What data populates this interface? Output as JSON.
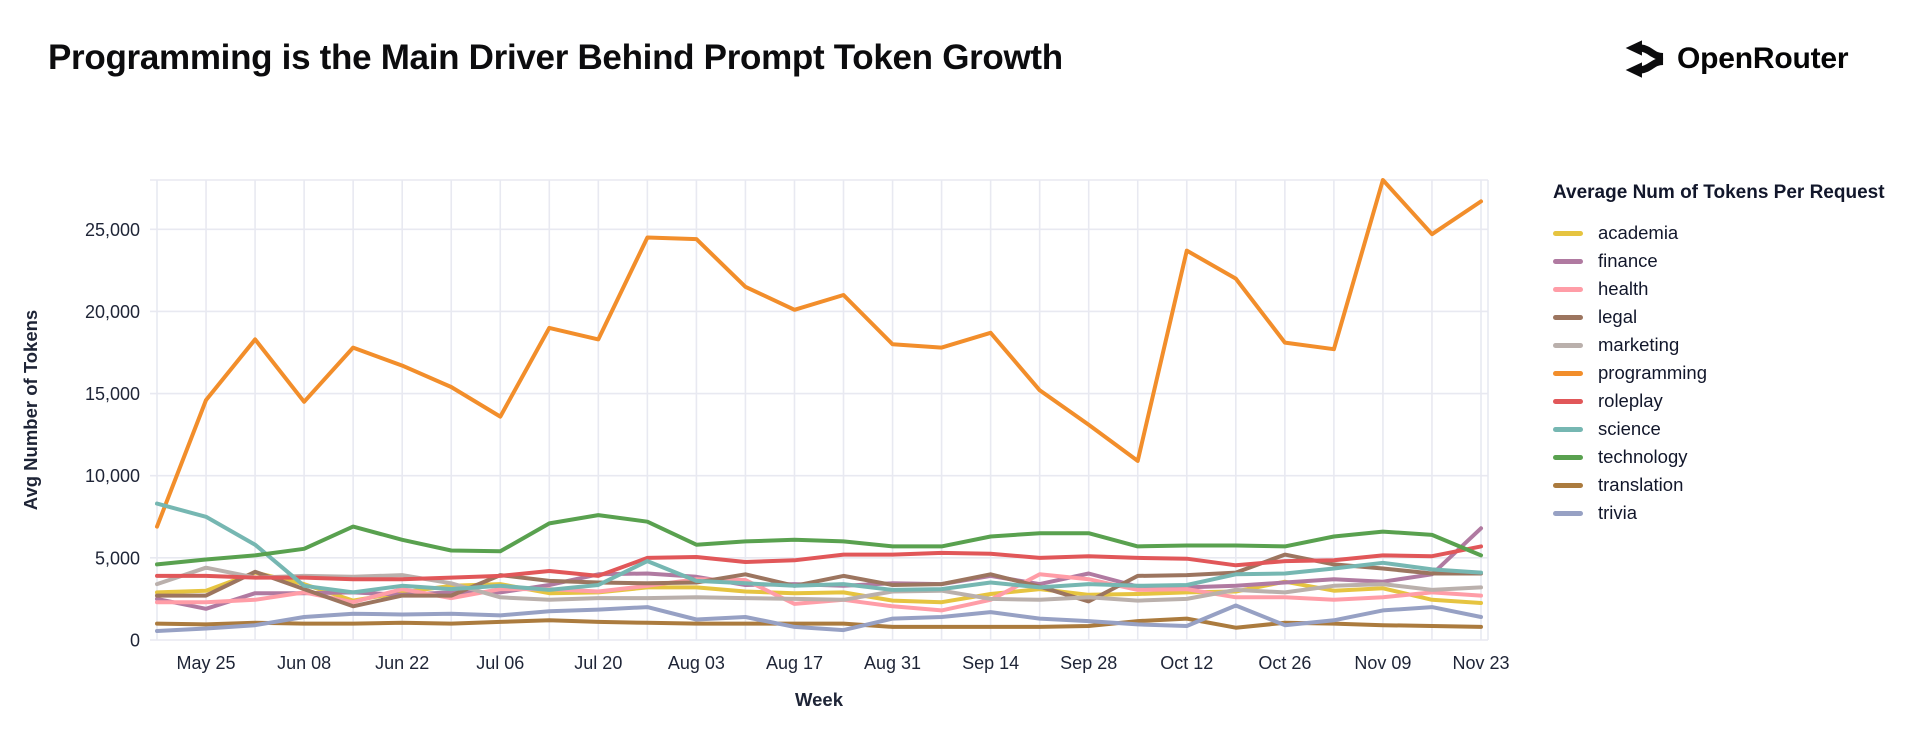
{
  "header": {
    "title": "Programming is the Main Driver Behind Prompt Token Growth",
    "brand": "OpenRouter"
  },
  "chart_data": {
    "type": "line",
    "title": "",
    "xlabel": "Week",
    "ylabel": "Avg Number of Tokens",
    "legend_title": "Average Num of Tokens Per Request",
    "legend_position": "right",
    "grid": true,
    "ylim": [
      0,
      28000
    ],
    "yticks": [
      0,
      5000,
      10000,
      15000,
      20000,
      25000
    ],
    "categories": [
      "May 18",
      "May 25",
      "Jun 01",
      "Jun 08",
      "Jun 15",
      "Jun 22",
      "Jun 29",
      "Jul 06",
      "Jul 13",
      "Jul 20",
      "Jul 27",
      "Aug 03",
      "Aug 10",
      "Aug 17",
      "Aug 24",
      "Aug 31",
      "Sep 07",
      "Sep 14",
      "Sep 21",
      "Sep 28",
      "Oct 05",
      "Oct 12",
      "Oct 19",
      "Oct 26",
      "Nov 02",
      "Nov 09",
      "Nov 16",
      "Nov 23"
    ],
    "x_tick_labels": [
      "May 25",
      "Jun 08",
      "Jun 22",
      "Jul 06",
      "Jul 20",
      "Aug 03",
      "Aug 17",
      "Aug 31",
      "Sep 14",
      "Sep 28",
      "Oct 12",
      "Oct 26",
      "Nov 09",
      "Nov 23"
    ],
    "series": [
      {
        "name": "academia",
        "color": "#e6c440",
        "values": [
          2900,
          3000,
          4100,
          3400,
          2400,
          2900,
          3300,
          3400,
          2850,
          2900,
          3200,
          3200,
          2950,
          2850,
          2900,
          2400,
          2300,
          2800,
          3100,
          2750,
          2800,
          2900,
          2950,
          3550,
          3000,
          3150,
          2450,
          2250
        ]
      },
      {
        "name": "finance",
        "color": "#b07aa1",
        "values": [
          2500,
          1900,
          2850,
          2850,
          2900,
          2750,
          2900,
          2900,
          3350,
          4000,
          4050,
          3850,
          3350,
          3400,
          3300,
          3450,
          3400,
          3900,
          3400,
          4050,
          3250,
          3200,
          3300,
          3500,
          3700,
          3550,
          4000,
          6800
        ]
      },
      {
        "name": "health",
        "color": "#ff9da7",
        "values": [
          2300,
          2300,
          2450,
          2900,
          2300,
          3100,
          2550,
          3100,
          3100,
          2950,
          3300,
          3700,
          3650,
          2200,
          2450,
          2050,
          1800,
          2450,
          4000,
          3700,
          3050,
          3100,
          2600,
          2600,
          2450,
          2600,
          2900,
          2700
        ]
      },
      {
        "name": "legal",
        "color": "#9c755f",
        "values": [
          2700,
          2700,
          4150,
          3100,
          2050,
          2700,
          2700,
          3950,
          3600,
          3500,
          3450,
          3500,
          4000,
          3300,
          3900,
          3350,
          3400,
          4000,
          3250,
          2350,
          3900,
          3950,
          4100,
          5200,
          4600,
          4350,
          4050,
          4050
        ]
      },
      {
        "name": "marketing",
        "color": "#bab0ac",
        "values": [
          3400,
          4400,
          3800,
          3900,
          3850,
          3950,
          3450,
          2600,
          2450,
          2550,
          2550,
          2600,
          2550,
          2500,
          2450,
          2950,
          3000,
          2500,
          2450,
          2600,
          2400,
          2500,
          3050,
          2900,
          3300,
          3400,
          3050,
          3200
        ]
      },
      {
        "name": "programming",
        "color": "#f28e2b",
        "values": [
          6900,
          14600,
          18300,
          14500,
          17800,
          16700,
          15400,
          13600,
          19000,
          18300,
          24500,
          24400,
          21500,
          20100,
          21000,
          18000,
          17800,
          18700,
          15200,
          13100,
          10900,
          23700,
          22000,
          18100,
          17700,
          28000,
          24700,
          26700
        ]
      },
      {
        "name": "roleplay",
        "color": "#e15759",
        "values": [
          3900,
          3900,
          3800,
          3800,
          3700,
          3700,
          3800,
          3900,
          4200,
          3900,
          5000,
          5050,
          4750,
          4850,
          5200,
          5200,
          5300,
          5250,
          5000,
          5100,
          5000,
          4950,
          4550,
          4800,
          4850,
          5150,
          5100,
          5700
        ]
      },
      {
        "name": "science",
        "color": "#76b7b2",
        "values": [
          8300,
          7500,
          5800,
          3300,
          2900,
          3300,
          3100,
          3300,
          3050,
          3350,
          4800,
          3600,
          3450,
          3300,
          3400,
          3050,
          3100,
          3500,
          3200,
          3400,
          3300,
          3350,
          4000,
          4050,
          4350,
          4700,
          4300,
          4100
        ]
      },
      {
        "name": "technology",
        "color": "#59a14f",
        "values": [
          4600,
          4900,
          5150,
          5550,
          6900,
          6100,
          5450,
          5400,
          7100,
          7600,
          7200,
          5800,
          6000,
          6100,
          6000,
          5700,
          5700,
          6300,
          6500,
          6500,
          5700,
          5750,
          5750,
          5700,
          6300,
          6600,
          6400,
          5150
        ]
      },
      {
        "name": "translation",
        "color": "#ab7b3e",
        "values": [
          1000,
          950,
          1050,
          1000,
          1000,
          1050,
          1000,
          1100,
          1200,
          1100,
          1050,
          1000,
          1000,
          1000,
          1000,
          800,
          800,
          800,
          800,
          850,
          1150,
          1300,
          750,
          1050,
          1000,
          900,
          850,
          800
        ]
      },
      {
        "name": "trivia",
        "color": "#97a1c4",
        "values": [
          550,
          700,
          900,
          1400,
          1600,
          1550,
          1600,
          1500,
          1750,
          1850,
          2000,
          1250,
          1400,
          800,
          600,
          1300,
          1400,
          1700,
          1300,
          1150,
          950,
          850,
          2100,
          900,
          1200,
          1800,
          2000,
          1400
        ]
      }
    ]
  }
}
